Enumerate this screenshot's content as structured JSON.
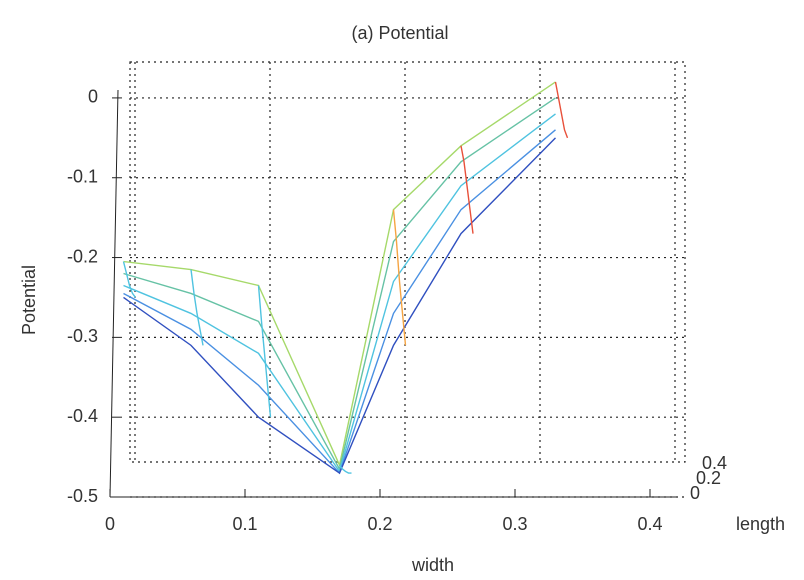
{
  "chart_data": {
    "type": "line",
    "title": "(a) Potential",
    "x_label": "width",
    "y_label": "Potential",
    "depth_label": "length",
    "depth_ticks": [
      0,
      0.2,
      0.4
    ],
    "xlim": [
      0,
      0.42
    ],
    "xticks": [
      0,
      0.1,
      0.2,
      0.3,
      0.4
    ],
    "ylim": [
      -0.5,
      0.045
    ],
    "yticks": [
      0,
      -0.1,
      -0.2,
      -0.3,
      -0.4,
      -0.5
    ],
    "grid": true,
    "series": [
      {
        "color": "#a6d96a",
        "x": [
          0.01,
          0.06,
          0.11,
          0.17,
          0.21,
          0.26,
          0.33
        ],
        "values": [
          -0.205,
          -0.215,
          -0.235,
          -0.46,
          -0.14,
          -0.06,
          0.02
        ]
      },
      {
        "color": "#66c2a5",
        "x": [
          0.01,
          0.06,
          0.11,
          0.17,
          0.21,
          0.26,
          0.33
        ],
        "values": [
          -0.22,
          -0.245,
          -0.28,
          -0.465,
          -0.18,
          -0.08,
          0.0
        ]
      },
      {
        "color": "#4fc3e0",
        "x": [
          0.01,
          0.06,
          0.11,
          0.17,
          0.21,
          0.26,
          0.33
        ],
        "values": [
          -0.235,
          -0.27,
          -0.32,
          -0.468,
          -0.23,
          -0.11,
          -0.02
        ]
      },
      {
        "color": "#4a90e2",
        "x": [
          0.01,
          0.06,
          0.11,
          0.17,
          0.21,
          0.26,
          0.33
        ],
        "values": [
          -0.245,
          -0.29,
          -0.36,
          -0.47,
          -0.27,
          -0.14,
          -0.04
        ]
      },
      {
        "color": "#3050c0",
        "x": [
          0.01,
          0.06,
          0.11,
          0.17,
          0.21,
          0.26,
          0.33
        ],
        "values": [
          -0.25,
          -0.31,
          -0.4,
          -0.47,
          -0.31,
          -0.17,
          -0.05
        ]
      }
    ]
  }
}
